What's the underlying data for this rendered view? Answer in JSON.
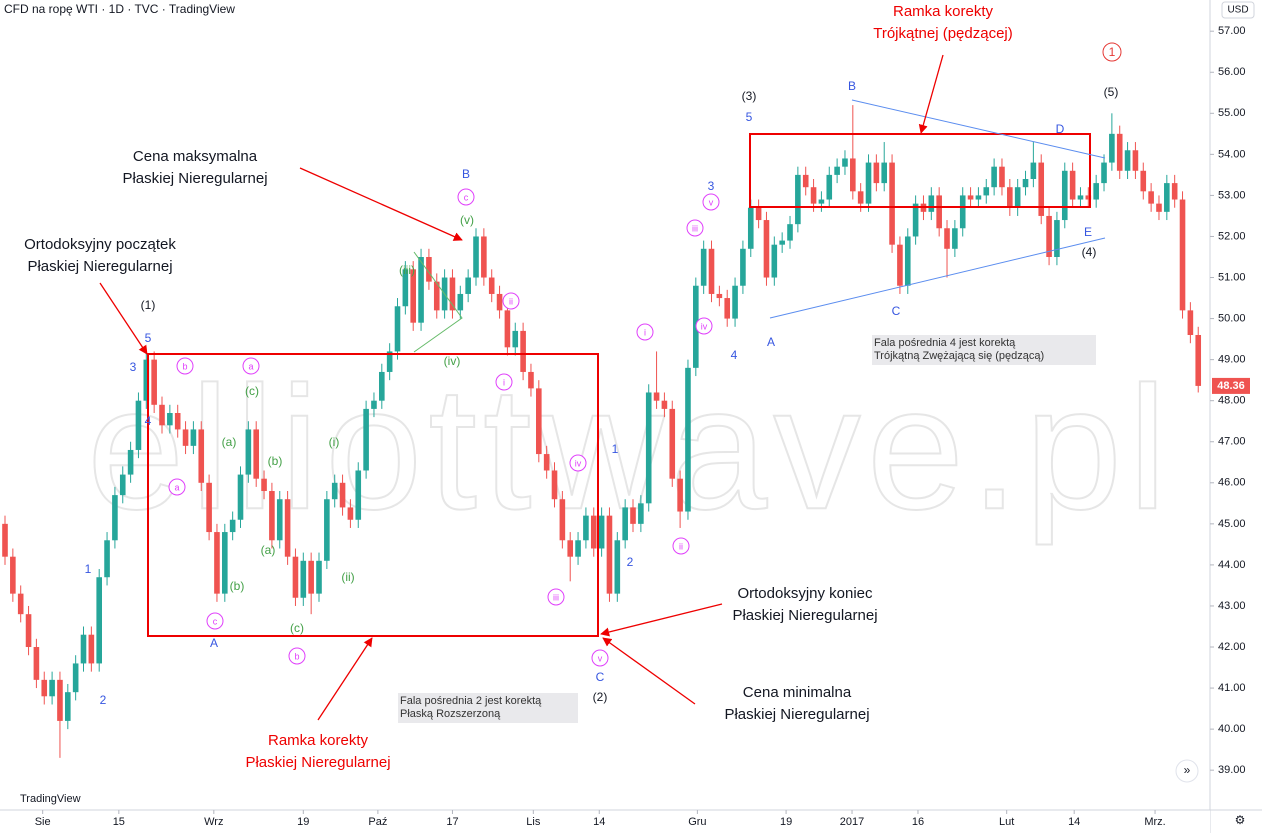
{
  "header": {
    "symbol": "CFD na ropę WTI · 1D · TVC · TradingView",
    "currency": "USD",
    "logo": "TradingView"
  },
  "chart_data": {
    "type": "candlestick",
    "up_color": "#26a69a",
    "down_color": "#ef5350",
    "xlim": [
      -0.637,
      153.5
    ],
    "ylim": [
      38.03,
      57.76
    ],
    "xticks": [
      {
        "value": 4.8,
        "label": "Sie"
      },
      {
        "value": 14.5,
        "label": "15"
      },
      {
        "value": 26.6,
        "label": "Wrz"
      },
      {
        "value": 38.0,
        "label": "19"
      },
      {
        "value": 47.5,
        "label": "Paź"
      },
      {
        "value": 57.0,
        "label": "17"
      },
      {
        "value": 67.3,
        "label": "Lis"
      },
      {
        "value": 75.7,
        "label": "14"
      },
      {
        "value": 88.2,
        "label": "Gru"
      },
      {
        "value": 99.5,
        "label": "19"
      },
      {
        "value": 107.9,
        "label": "2017"
      },
      {
        "value": 116.3,
        "label": "16"
      },
      {
        "value": 127.6,
        "label": "Lut"
      },
      {
        "value": 136.2,
        "label": "14"
      },
      {
        "value": 146.5,
        "label": "Mrz."
      }
    ],
    "yticks": [
      {
        "value": 39,
        "label": "39.00"
      },
      {
        "value": 40,
        "label": "40.00"
      },
      {
        "value": 41,
        "label": "41.00"
      },
      {
        "value": 42,
        "label": "42.00"
      },
      {
        "value": 43,
        "label": "43.00"
      },
      {
        "value": 44,
        "label": "44.00"
      },
      {
        "value": 45,
        "label": "45.00"
      },
      {
        "value": 46,
        "label": "46.00"
      },
      {
        "value": 47,
        "label": "47.00"
      },
      {
        "value": 48,
        "label": "48.00"
      },
      {
        "value": 49,
        "label": "49.00"
      },
      {
        "value": 50,
        "label": "50.00"
      },
      {
        "value": 51,
        "label": "51.00"
      },
      {
        "value": 52,
        "label": "52.00"
      },
      {
        "value": 53,
        "label": "53.00"
      },
      {
        "value": 54,
        "label": "54.00"
      },
      {
        "value": 55,
        "label": "55.00"
      },
      {
        "value": 56,
        "label": "56.00"
      },
      {
        "value": 57,
        "label": "57.00"
      }
    ],
    "open": [
      45.0,
      44.2,
      43.3,
      42.8,
      42.0,
      41.2,
      40.8,
      41.2,
      40.2,
      40.9,
      41.6,
      42.3,
      41.6,
      43.7,
      44.6,
      45.7,
      46.2,
      46.8,
      48.0,
      49.0,
      47.9,
      47.4,
      47.7,
      47.3,
      46.9,
      47.3,
      46.0,
      44.8,
      43.3,
      44.8,
      45.1,
      46.2,
      47.3,
      46.1,
      45.8,
      44.6,
      45.6,
      44.2,
      43.2,
      44.1,
      43.3,
      44.1,
      45.6,
      46.0,
      45.4,
      45.1,
      46.3,
      47.8,
      48.0,
      48.7,
      49.2,
      50.3,
      51.2,
      49.9,
      51.5,
      50.9,
      50.2,
      51.0,
      50.2,
      50.6,
      51.0,
      52.0,
      51.0,
      50.6,
      50.2,
      49.3,
      49.7,
      48.7,
      48.3,
      46.7,
      46.3,
      45.6,
      44.6,
      44.2,
      44.6,
      45.2,
      44.4,
      45.2,
      43.3,
      44.6,
      45.4,
      45.0,
      45.5,
      48.2,
      48.0,
      47.8,
      46.1,
      45.3,
      48.8,
      50.8,
      51.7,
      50.6,
      50.5,
      50.0,
      50.8,
      51.7,
      52.7,
      52.4,
      51.0,
      51.8,
      51.9,
      52.3,
      53.5,
      53.2,
      52.8,
      52.9,
      53.5,
      53.7,
      53.9,
      53.1,
      52.8,
      53.8,
      53.3,
      53.8,
      51.8,
      50.8,
      52.0,
      52.8,
      52.6,
      53.0,
      52.2,
      51.7,
      52.2,
      53.0,
      52.9,
      53.0,
      53.2,
      53.7,
      53.2,
      52.7,
      53.2,
      53.4,
      53.8,
      52.5,
      51.5,
      52.4,
      53.6,
      52.9,
      53.0,
      52.9,
      53.3,
      53.8,
      54.5,
      53.6,
      54.1,
      53.6,
      53.1,
      52.8,
      52.6,
      53.3,
      52.9,
      50.2,
      49.6
    ],
    "high": [
      45.2,
      44.4,
      43.5,
      43.0,
      42.2,
      41.4,
      41.4,
      41.4,
      41.1,
      41.8,
      42.5,
      42.5,
      43.9,
      44.8,
      45.9,
      46.4,
      47.0,
      48.2,
      49.2,
      49.2,
      48.1,
      47.9,
      47.9,
      47.5,
      47.5,
      47.5,
      46.2,
      45.0,
      45.0,
      45.3,
      46.4,
      47.5,
      47.5,
      46.3,
      46.0,
      45.8,
      45.8,
      44.4,
      44.3,
      44.3,
      44.3,
      45.8,
      46.2,
      46.2,
      45.6,
      46.5,
      48.0,
      48.2,
      48.9,
      49.4,
      50.5,
      51.4,
      51.4,
      51.7,
      51.7,
      51.1,
      51.2,
      51.2,
      50.8,
      51.2,
      52.2,
      52.2,
      51.2,
      50.8,
      50.4,
      49.9,
      49.9,
      48.9,
      48.5,
      46.9,
      46.5,
      45.8,
      44.8,
      44.8,
      45.4,
      45.4,
      45.4,
      45.4,
      44.8,
      45.6,
      45.6,
      45.7,
      48.4,
      49.2,
      48.2,
      48.0,
      46.3,
      49.0,
      51.0,
      51.9,
      51.9,
      50.8,
      50.7,
      51.0,
      51.9,
      52.9,
      52.9,
      52.6,
      52.0,
      52.1,
      52.5,
      53.7,
      53.7,
      53.4,
      53.1,
      53.7,
      53.9,
      54.1,
      55.2,
      53.3,
      54.0,
      54.0,
      54.3,
      54.0,
      52.0,
      52.2,
      53.0,
      53.0,
      53.2,
      53.2,
      52.4,
      52.4,
      53.2,
      53.2,
      53.2,
      53.4,
      53.9,
      53.9,
      53.4,
      53.4,
      53.6,
      54.3,
      54.0,
      52.7,
      52.6,
      53.8,
      53.8,
      53.2,
      53.2,
      53.5,
      54.0,
      55.0,
      54.7,
      54.3,
      54.3,
      53.8,
      53.3,
      53.0,
      53.5,
      53.5,
      53.1,
      50.4,
      49.8
    ],
    "low": [
      44.0,
      43.1,
      42.6,
      41.8,
      41.0,
      40.6,
      40.6,
      39.3,
      40.0,
      40.7,
      41.4,
      41.4,
      41.4,
      43.5,
      44.4,
      45.5,
      46.0,
      46.6,
      47.8,
      47.7,
      47.2,
      47.2,
      47.1,
      46.7,
      46.7,
      45.8,
      44.6,
      43.1,
      43.1,
      44.6,
      44.9,
      46.0,
      45.9,
      45.6,
      44.4,
      44.4,
      44.0,
      43.0,
      43.0,
      42.8,
      43.1,
      43.9,
      45.4,
      45.2,
      44.9,
      44.9,
      46.1,
      47.6,
      47.8,
      48.5,
      49.0,
      50.1,
      49.7,
      49.7,
      50.7,
      50.0,
      50.0,
      50.0,
      50.0,
      50.4,
      50.8,
      50.8,
      50.4,
      50.0,
      49.1,
      49.1,
      48.5,
      48.1,
      46.5,
      46.1,
      45.4,
      44.4,
      43.6,
      44.0,
      44.4,
      44.2,
      44.2,
      43.1,
      43.1,
      44.4,
      44.8,
      44.8,
      45.3,
      47.8,
      47.6,
      45.9,
      44.9,
      45.1,
      48.6,
      50.6,
      50.4,
      50.3,
      49.8,
      49.8,
      50.6,
      51.5,
      52.2,
      50.8,
      50.8,
      51.6,
      51.7,
      52.1,
      53.0,
      52.6,
      52.6,
      52.7,
      53.3,
      53.5,
      52.9,
      52.6,
      52.6,
      53.1,
      53.1,
      51.6,
      50.6,
      50.6,
      51.8,
      52.4,
      52.4,
      52.0,
      51.0,
      51.5,
      52.0,
      52.7,
      52.7,
      52.8,
      53.0,
      53.0,
      52.5,
      52.5,
      53.0,
      53.2,
      52.3,
      51.3,
      51.3,
      52.2,
      52.7,
      52.7,
      52.7,
      52.7,
      53.1,
      53.6,
      53.4,
      53.4,
      53.4,
      52.9,
      52.6,
      52.4,
      52.4,
      52.7,
      50.0,
      49.4,
      48.2
    ],
    "close": [
      44.2,
      43.3,
      42.8,
      42.0,
      41.2,
      40.8,
      41.2,
      40.2,
      40.9,
      41.6,
      42.3,
      41.6,
      43.7,
      44.6,
      45.7,
      46.2,
      46.8,
      48.0,
      49.0,
      47.9,
      47.4,
      47.7,
      47.3,
      46.9,
      47.3,
      46.0,
      44.8,
      43.3,
      44.8,
      45.1,
      46.2,
      47.3,
      46.1,
      45.8,
      44.6,
      45.6,
      44.2,
      43.2,
      44.1,
      43.3,
      44.1,
      45.6,
      46.0,
      45.4,
      45.1,
      46.3,
      47.8,
      48.0,
      48.7,
      49.2,
      50.3,
      51.2,
      49.9,
      51.5,
      50.9,
      50.2,
      51.0,
      50.2,
      50.6,
      51.0,
      52.0,
      51.0,
      50.6,
      50.2,
      49.3,
      49.7,
      48.7,
      48.3,
      46.7,
      46.3,
      45.6,
      44.6,
      44.2,
      44.6,
      45.2,
      44.4,
      45.2,
      43.3,
      44.6,
      45.4,
      45.0,
      45.5,
      48.2,
      48.0,
      47.8,
      46.1,
      45.3,
      48.8,
      50.8,
      51.7,
      50.6,
      50.5,
      50.0,
      50.8,
      51.7,
      52.7,
      52.4,
      51.0,
      51.8,
      51.9,
      52.3,
      53.5,
      53.2,
      52.8,
      52.9,
      53.5,
      53.7,
      53.9,
      53.1,
      52.8,
      53.8,
      53.3,
      53.8,
      51.8,
      50.8,
      52.0,
      52.8,
      52.6,
      53.0,
      52.2,
      51.7,
      52.2,
      53.0,
      52.9,
      53.0,
      53.2,
      53.7,
      53.2,
      52.7,
      53.2,
      53.4,
      53.8,
      52.5,
      51.5,
      52.4,
      53.6,
      52.9,
      53.0,
      52.9,
      53.3,
      53.8,
      54.5,
      53.6,
      54.1,
      53.6,
      53.1,
      52.8,
      52.6,
      53.3,
      52.9,
      50.2,
      49.6,
      48.36
    ],
    "watermark": "elliottwave.pl",
    "wave_labels": [
      "(1)",
      "(3)",
      "(5)",
      "(4)",
      "(2)",
      "1",
      "5",
      "3",
      "4",
      "1",
      "2",
      "A",
      "B",
      "C",
      "1",
      "2",
      "3",
      "4",
      "5",
      "A",
      "B",
      "C",
      "D",
      "E",
      "b",
      "a",
      "a",
      "c",
      "b",
      "c",
      "ii",
      "i",
      "iv",
      "iii",
      "v",
      "i",
      "ii",
      "iii",
      "iv",
      "v",
      "(c)",
      "(a)",
      "(b)",
      "(a)",
      "(b)",
      "(c)",
      "(i)",
      "(ii)",
      "(iii)",
      "(iv)",
      "(v)"
    ],
    "callouts": [
      [
        "Ramka korekty",
        "Trójkątnej (pędzącej)"
      ],
      [
        "Cena maksymalna",
        "Płaskiej Nieregularnej"
      ],
      [
        "Ortodoksyjny początek",
        "Płaskiej Nieregularnej"
      ],
      [
        "Ortodoksyjny koniec",
        "Płaskiej Nieregularnej"
      ],
      [
        "Cena minimalna",
        "Płaskiej Nieregularnej"
      ],
      [
        "Ramka korekty",
        "Płaskiej Nieregularnej"
      ]
    ],
    "notes": [
      [
        "Fala pośrednia 2 jest korektą",
        "Płaską Rozszerzoną"
      ],
      [
        "Fala pośrednia 4 jest korektą",
        "Trójkątną Zwężającą się (pędzącą)"
      ]
    ]
  }
}
